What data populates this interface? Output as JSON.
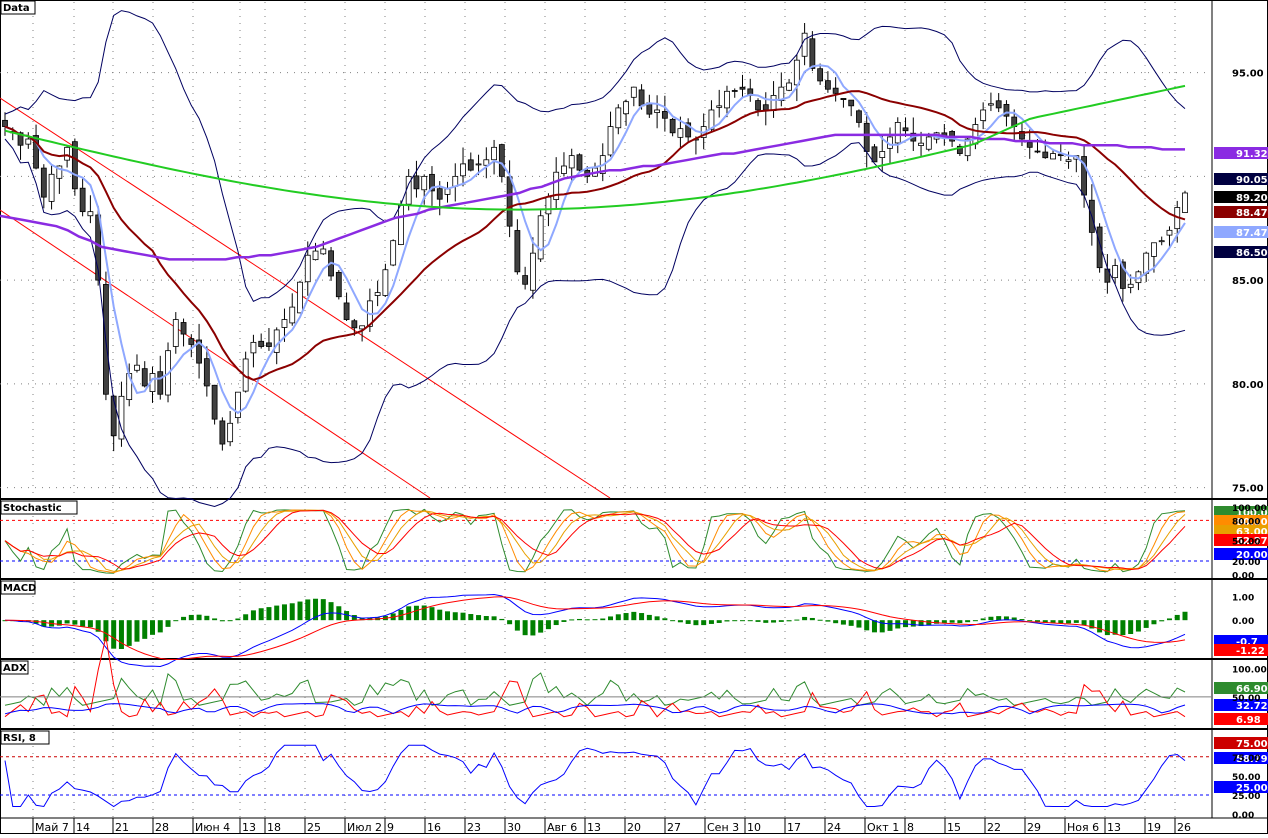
{
  "panes": {
    "main": {
      "label": "Data",
      "ticks": [
        "95.00",
        "90.00",
        "85.00",
        "80.00",
        "75.00"
      ]
    },
    "stoch": {
      "label": "Stochastic",
      "ticks": [
        "100.00",
        "80.00",
        "50.00",
        "20.00",
        "0.00"
      ]
    },
    "macd": {
      "label": "MACD",
      "ticks": [
        "1.00",
        "0.00",
        "-1.00"
      ]
    },
    "adx": {
      "label": "ADX",
      "ticks": [
        "100.00",
        "50.00"
      ]
    },
    "rsi": {
      "label": "RSI, 8",
      "ticks": [
        "75.00",
        "50.00",
        "25.00",
        "0.00"
      ]
    }
  },
  "badges": {
    "main": [
      {
        "text": "91.32",
        "color": "#8a2be2"
      },
      {
        "text": "90.05",
        "color": "#000040"
      },
      {
        "text": "89.20",
        "color": "#000000"
      },
      {
        "text": "88.47",
        "color": "#8b0000"
      },
      {
        "text": "87.47",
        "color": "#8fa8ff"
      },
      {
        "text": "86.50",
        "color": "#000040"
      }
    ],
    "stoch": [
      {
        "text": "100.00",
        "color": "#2e8b2e"
      },
      {
        "text": "80.00",
        "color": "#ff8c00"
      },
      {
        "text": "63.00",
        "color": "#e8a000"
      },
      {
        "text": "52.27",
        "color": "#ff0000"
      },
      {
        "text": "20.00",
        "color": "#0000ff"
      }
    ],
    "macd": [
      {
        "text": "-0.7",
        "color": "#0000ff"
      },
      {
        "text": "-1.22",
        "color": "#ff0000"
      }
    ],
    "adx": [
      {
        "text": "66.90",
        "color": "#2e8b2e"
      },
      {
        "text": "32.72",
        "color": "#0000ff"
      },
      {
        "text": "6.98",
        "color": "#ff0000"
      }
    ],
    "rsi": [
      {
        "text": "75.00",
        "color": "#cc0000"
      },
      {
        "text": "58.79",
        "color": "#0000ff"
      },
      {
        "text": "25.00",
        "color": "#0000ff"
      }
    ]
  },
  "x_axis": [
    "Май 7",
    "14",
    "21",
    "28",
    "Июн 4",
    "13",
    "18",
    "25",
    "Июл 2",
    "9",
    "16",
    "23",
    "30",
    "Авг 6",
    "13",
    "20",
    "27",
    "Сен 3",
    "10",
    "17",
    "24",
    "Окт 1",
    "8",
    "15",
    "22",
    "29",
    "Ноя 6",
    "13",
    "19",
    "26"
  ],
  "chart_data": {
    "type": "candlestick",
    "title": "Data",
    "ylim": [
      74.5,
      98.5
    ],
    "grid": true,
    "series": [
      {
        "name": "Candles",
        "values": [
          92.4,
          92.1,
          91.5,
          91.8,
          90.4,
          89.0,
          90.1,
          90.5,
          91.4,
          89.4,
          88.3,
          88.3,
          85.0,
          79.5,
          77.5,
          79.4,
          80.5,
          80.9,
          79.9,
          80.5,
          79.5,
          81.6,
          83.1,
          82.4,
          81.9,
          81.0,
          79.9,
          78.3,
          77.1,
          78.1,
          79.6,
          81.2,
          82.0,
          81.8,
          81.8,
          82.6,
          83.1,
          83.7,
          84.9,
          86.2,
          86.4,
          86.5,
          85.2,
          84.2,
          83.1,
          82.7,
          82.8,
          84.0,
          84.4,
          85.5,
          86.9,
          88.6,
          90.0,
          89.4,
          90.0,
          89.3,
          88.9,
          89.4,
          90.0,
          90.6,
          90.3,
          90.6,
          90.8,
          91.4,
          90.0,
          87.6,
          85.4,
          84.8,
          86.3,
          88.1,
          89.0,
          90.2,
          90.5,
          91.0,
          90.3,
          90.0,
          90.4,
          91.0,
          92.4,
          93.3,
          93.6,
          94.3,
          93.4,
          93.0,
          93.2,
          92.8,
          92.1,
          92.3,
          91.9,
          91.8,
          92.4,
          93.2,
          93.4,
          94.1,
          94.1,
          94.2,
          93.9,
          93.2,
          93.2,
          93.9,
          94.3,
          94.5,
          95.6,
          96.9,
          95.2,
          94.6,
          94.2,
          94.0,
          93.7,
          93.4,
          92.6,
          91.2,
          90.7,
          91.2,
          91.9,
          92.6,
          92.2,
          91.7,
          91.6,
          91.9,
          92.1,
          91.9,
          91.7,
          91.1,
          91.8,
          92.5,
          93.2,
          93.5,
          93.3,
          92.9,
          92.4,
          91.8,
          91.4,
          91.2,
          90.9,
          91.1,
          91.0,
          90.8,
          91.0,
          89.1,
          87.3,
          85.6,
          84.9,
          85.7,
          84.6,
          84.8,
          85.4,
          86.3,
          86.8,
          86.9,
          87.4,
          88.5,
          89.2
        ]
      },
      {
        "name": "MA Slow",
        "values": [
          88.1,
          88.0,
          87.9,
          87.8,
          87.7,
          87.6,
          87.4,
          87.1,
          86.9,
          86.6,
          86.5,
          86.4,
          86.3,
          86.2,
          86.1,
          86.0,
          86.0,
          86.0,
          86.0,
          86.0,
          86.0,
          86.1,
          86.1,
          86.2,
          86.2,
          86.3,
          86.4,
          86.5,
          86.6,
          86.8,
          87.0,
          87.2,
          87.4,
          87.6,
          87.8,
          88.0,
          88.1,
          88.2,
          88.4,
          88.5,
          88.6,
          88.7,
          88.8,
          88.9,
          89.0,
          89.1,
          89.2,
          89.4,
          89.5,
          89.7,
          89.9,
          90.0,
          90.1,
          90.2,
          90.3,
          90.3,
          90.4,
          90.5,
          90.5,
          90.6,
          90.7,
          90.8,
          90.9,
          91.0,
          91.1,
          91.1,
          91.2,
          91.3,
          91.4,
          91.5,
          91.6,
          91.7,
          91.8,
          91.9,
          92.0,
          92.0,
          92.0,
          92.0,
          92.0,
          92.0,
          92.0,
          92.0,
          92.0,
          92.0,
          91.9,
          91.9,
          91.9,
          91.8,
          91.8,
          91.8,
          91.7,
          91.7,
          91.7,
          91.6,
          91.6,
          91.6,
          91.5,
          91.5,
          91.5,
          91.5,
          91.4,
          91.4,
          91.4,
          91.3,
          91.3,
          91.3
        ]
      }
    ]
  }
}
